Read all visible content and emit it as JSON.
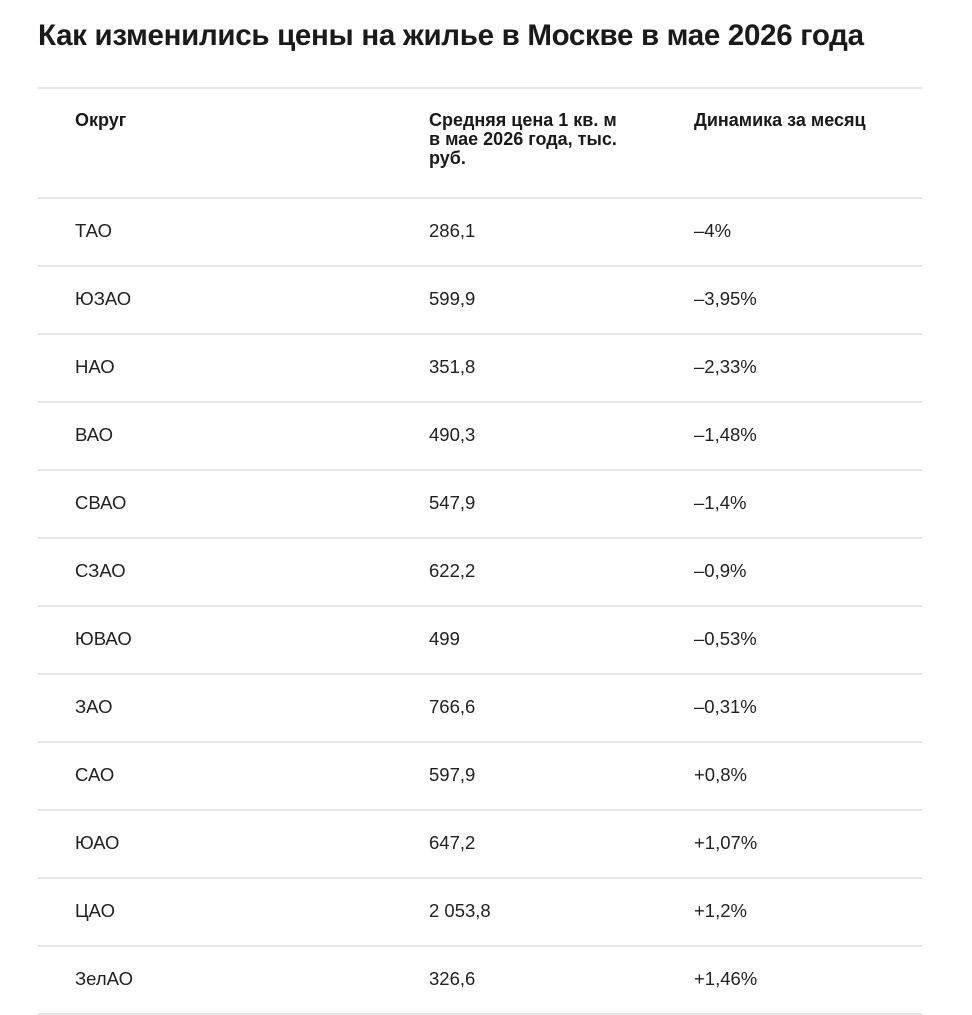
{
  "title": "Как изменились цены на жилье в Москве в мае 2026 года",
  "table": {
    "headers": [
      "Округ",
      "Средняя цена 1 кв. м в мае 2026 года, тыс. руб.",
      "Динамика за месяц"
    ],
    "rows": [
      [
        "ТАО",
        "286,1",
        "–4%"
      ],
      [
        "ЮЗАО",
        "599,9",
        "–3,95%"
      ],
      [
        "НАО",
        "351,8",
        "–2,33%"
      ],
      [
        "ВАО",
        "490,3",
        "–1,48%"
      ],
      [
        "СВАО",
        "547,9",
        "–1,4%"
      ],
      [
        "СЗАО",
        "622,2",
        "–0,9%"
      ],
      [
        "ЮВАО",
        "499",
        "–0,53%"
      ],
      [
        "ЗАО",
        "766,6",
        "–0,31%"
      ],
      [
        "САО",
        "597,9",
        "+0,8%"
      ],
      [
        "ЮАО",
        "647,2",
        "+1,07%"
      ],
      [
        "ЦАО",
        "2 053,8",
        "+1,2%"
      ],
      [
        "ЗелАО",
        "326,6",
        "+1,46%"
      ]
    ]
  }
}
